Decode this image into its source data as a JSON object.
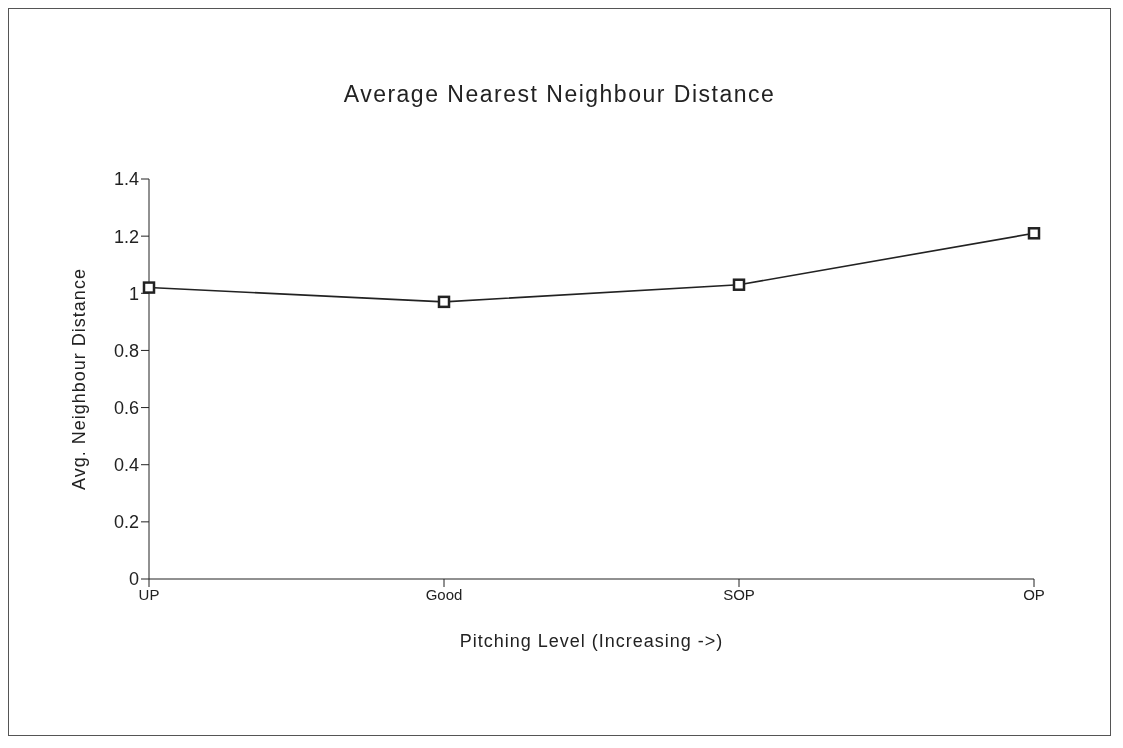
{
  "chart_data": {
    "type": "line",
    "title": "Average Nearest Neighbour Distance",
    "xlabel": "Pitching Level (Increasing ->)",
    "ylabel": "Avg. Neighbour Distance",
    "categories": [
      "UP",
      "Good",
      "SOP",
      "OP"
    ],
    "series": [
      {
        "color": "#222222",
        "values": [
          1.02,
          0.97,
          1.03,
          1.21
        ]
      }
    ],
    "ylim": [
      0,
      1.4
    ],
    "yticks": [
      0,
      0.2,
      0.4,
      0.6,
      0.8,
      1,
      1.2,
      1.4
    ],
    "grid": false,
    "legend": false,
    "marker": "square",
    "line_style": "solid"
  }
}
